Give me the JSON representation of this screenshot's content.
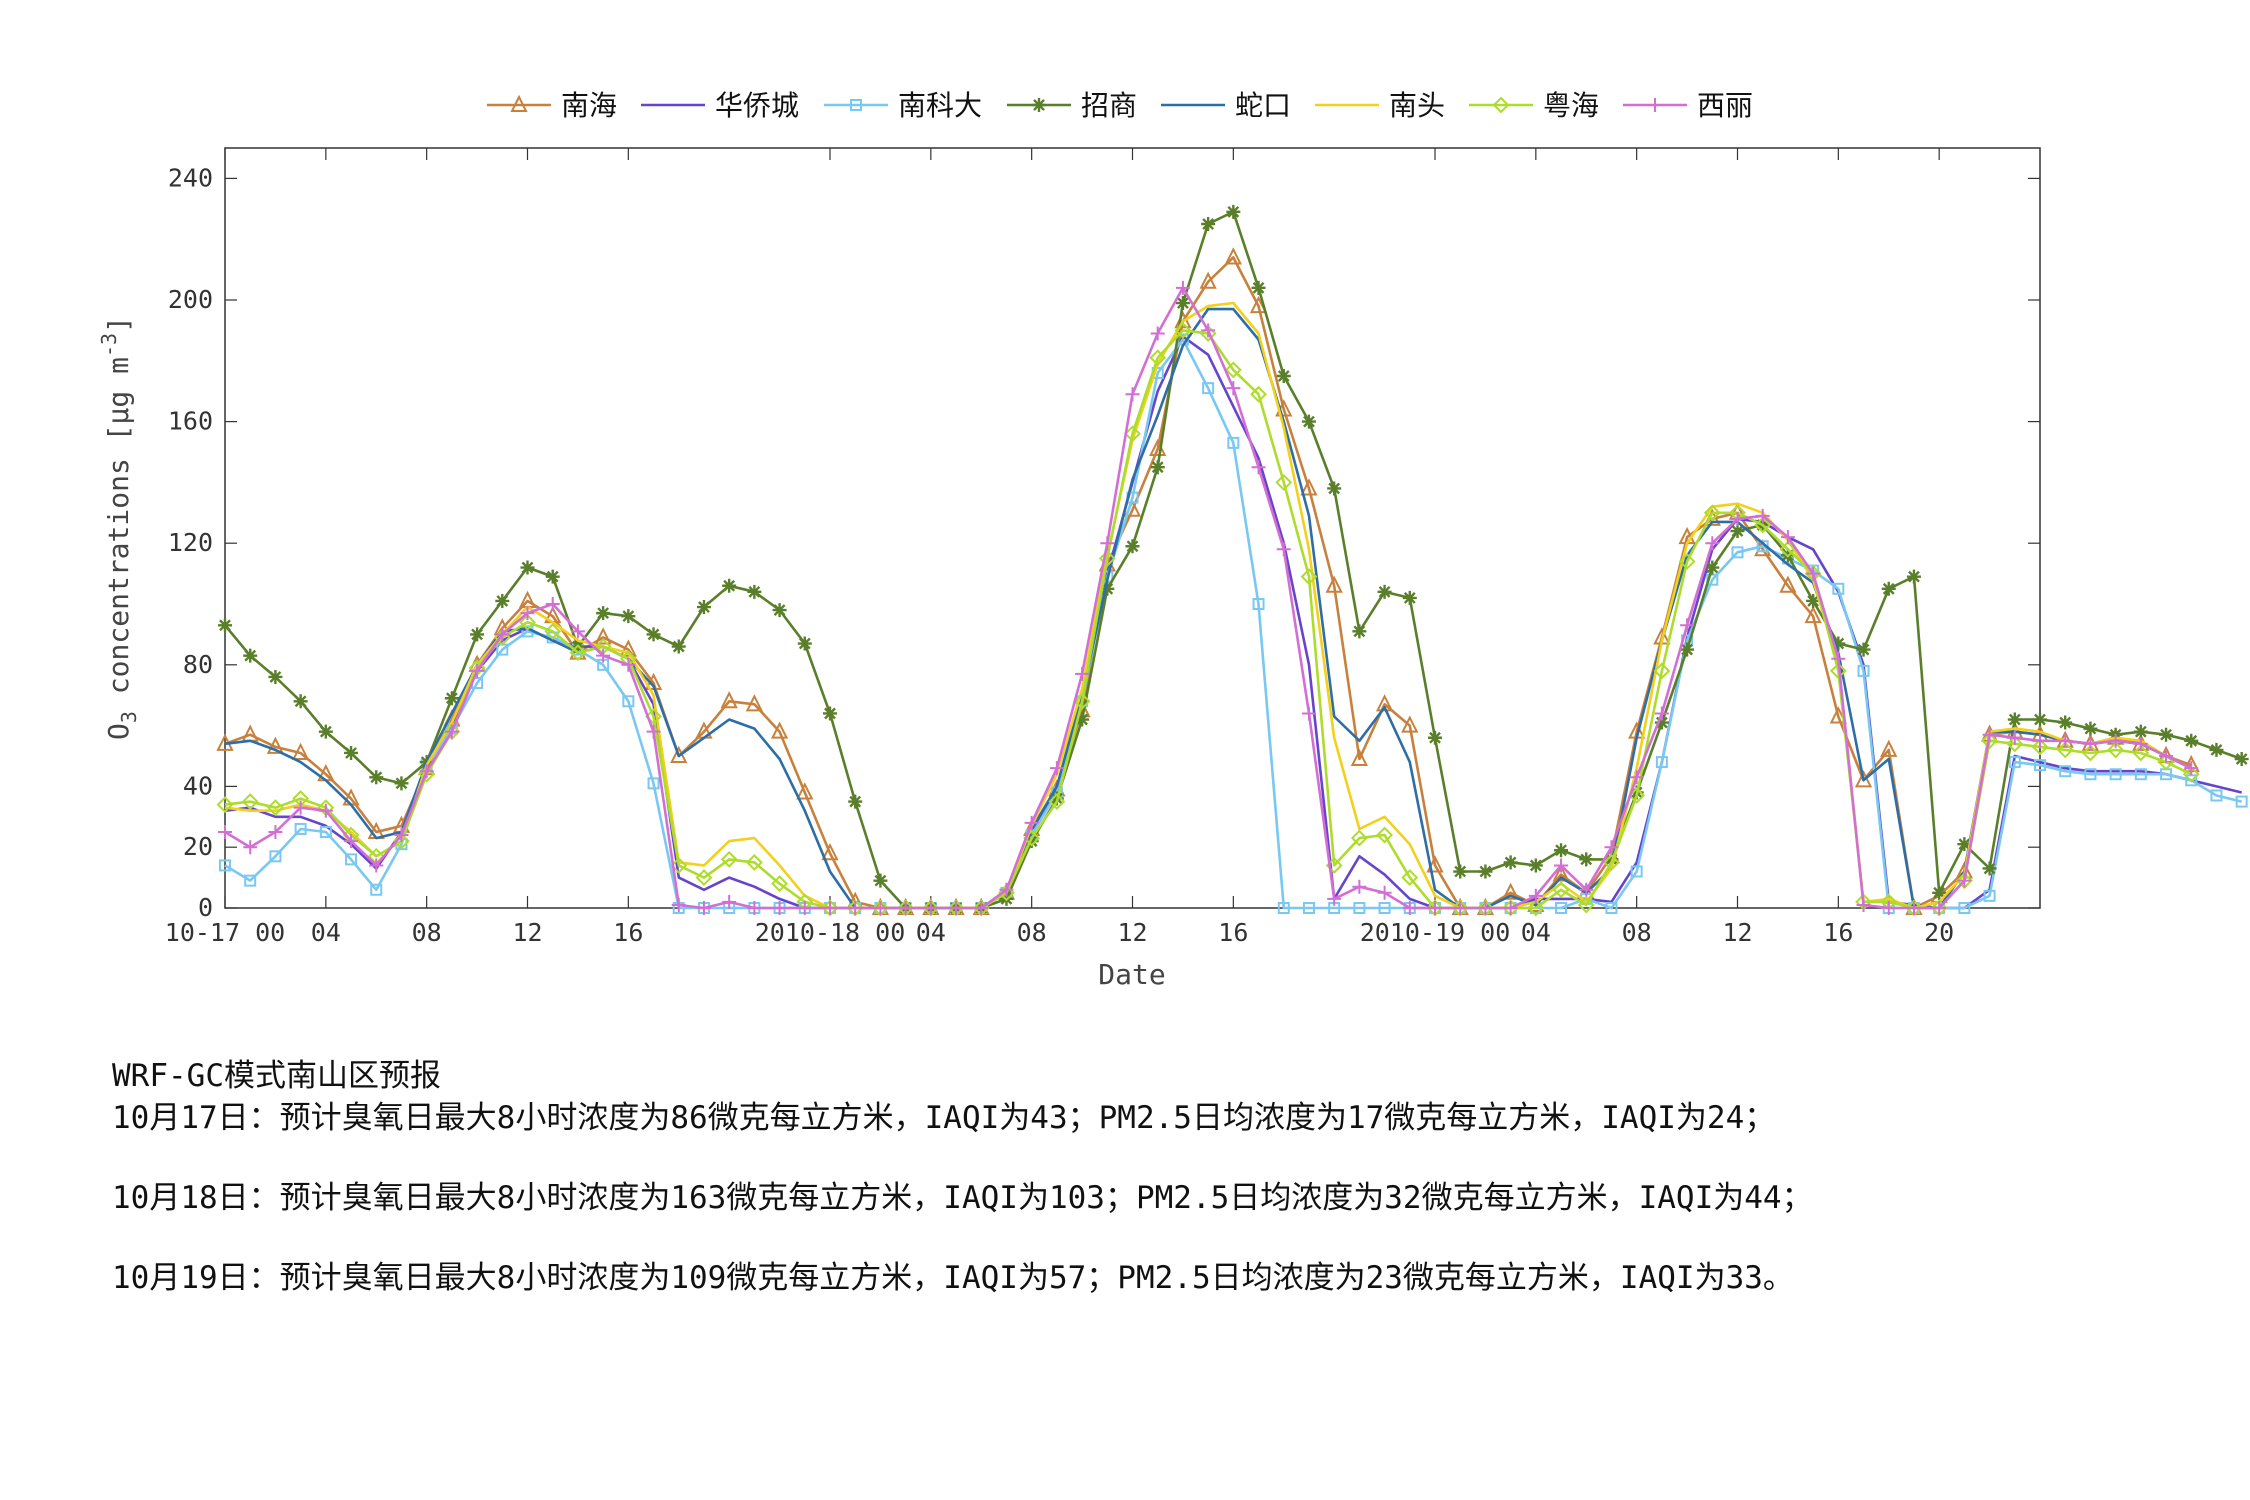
{
  "chart_data": {
    "type": "line",
    "title": "",
    "xlabel": "Date",
    "ylabel": "O3 concentrations [μg m-3]",
    "ylabel_parts": {
      "o": "O",
      "sub": "3",
      "mid": " concentrations [",
      "mu": "μ",
      "unit": "g m",
      "sup": "-3",
      "end": "]"
    },
    "ylim": [
      0,
      250
    ],
    "yticks": [
      0,
      20,
      40,
      80,
      120,
      160,
      200,
      240
    ],
    "x_range": [
      0,
      72
    ],
    "x_ticks": [
      {
        "x": 0,
        "label": "10-17 00"
      },
      {
        "x": 4,
        "label": "04"
      },
      {
        "x": 8,
        "label": "08"
      },
      {
        "x": 12,
        "label": "12"
      },
      {
        "x": 16,
        "label": "16"
      },
      {
        "x": 24,
        "label": "2010-18 00"
      },
      {
        "x": 28,
        "label": "04"
      },
      {
        "x": 32,
        "label": "08"
      },
      {
        "x": 36,
        "label": "12"
      },
      {
        "x": 40,
        "label": "16"
      },
      {
        "x": 48,
        "label": "2010-19 00"
      },
      {
        "x": 52,
        "label": "04"
      },
      {
        "x": 56,
        "label": "08"
      },
      {
        "x": 60,
        "label": "12"
      },
      {
        "x": 64,
        "label": "16"
      },
      {
        "x": 68,
        "label": "20"
      }
    ],
    "legend_position": "top",
    "grid": false,
    "series": [
      {
        "name": "南海",
        "color": "#C8813C",
        "marker": "triangle",
        "values": [
          54,
          57,
          53,
          51,
          44,
          36,
          25,
          27,
          46,
          62,
          80,
          92,
          101,
          96,
          84,
          89,
          85,
          74,
          50,
          58,
          68,
          67,
          58,
          38,
          18,
          2,
          0,
          0,
          0,
          0,
          0,
          5,
          26,
          39,
          65,
          113,
          131,
          151,
          193,
          206,
          214,
          198,
          164,
          138,
          106,
          49,
          67,
          60,
          14,
          0,
          0,
          5,
          1,
          11,
          5,
          17,
          58,
          89,
          122,
          128,
          130,
          118,
          106,
          96,
          63,
          42,
          52,
          0,
          4,
          12,
          57,
          58,
          57,
          55,
          54,
          56,
          54,
          50,
          47
        ]
      },
      {
        "name": "华侨城",
        "color": "#6644CC",
        "marker": "none",
        "values": [
          32,
          33,
          30,
          30,
          27,
          21,
          13,
          25,
          47,
          60,
          78,
          88,
          92,
          88,
          86,
          86,
          82,
          67,
          10,
          6,
          10,
          7,
          3,
          0,
          0,
          0,
          0,
          0,
          0,
          0,
          0,
          5,
          25,
          40,
          68,
          110,
          140,
          170,
          188,
          182,
          165,
          148,
          120,
          80,
          3,
          17,
          11,
          3,
          0,
          0,
          0,
          0,
          3,
          3,
          3,
          2,
          15,
          48,
          89,
          118,
          128,
          127,
          122,
          118,
          104,
          80,
          2,
          1,
          0,
          0,
          6,
          50,
          48,
          46,
          45,
          45,
          45,
          44,
          42,
          40,
          38
        ]
      },
      {
        "name": "南科大",
        "color": "#79C8F2",
        "marker": "square",
        "values": [
          14,
          9,
          17,
          26,
          25,
          16,
          6,
          21,
          47,
          59,
          74,
          85,
          91,
          89,
          85,
          80,
          68,
          41,
          0,
          0,
          0,
          0,
          0,
          0,
          0,
          0,
          0,
          0,
          0,
          0,
          0,
          5,
          24,
          38,
          68,
          109,
          135,
          176,
          187,
          171,
          153,
          100,
          0,
          0,
          0,
          0,
          0,
          0,
          0,
          0,
          0,
          0,
          0,
          0,
          3,
          0,
          12,
          48,
          88,
          108,
          117,
          119,
          115,
          111,
          105,
          78,
          0,
          0,
          0,
          0,
          4,
          48,
          47,
          45,
          44,
          44,
          44,
          44,
          42,
          37,
          35
        ]
      },
      {
        "name": "招商",
        "color": "#5A7F2A",
        "marker": "star",
        "values": [
          93,
          83,
          76,
          68,
          58,
          51,
          43,
          41,
          48,
          69,
          90,
          101,
          112,
          109,
          86,
          97,
          96,
          90,
          86,
          99,
          106,
          104,
          98,
          87,
          64,
          35,
          9,
          0,
          0,
          0,
          0,
          3,
          22,
          36,
          62,
          105,
          119,
          145,
          199,
          225,
          229,
          204,
          175,
          160,
          138,
          91,
          104,
          102,
          56,
          12,
          12,
          15,
          14,
          19,
          16,
          16,
          38,
          61,
          85,
          112,
          124,
          126,
          116,
          101,
          87,
          85,
          105,
          109,
          5,
          21,
          13,
          62,
          62,
          61,
          59,
          57,
          58,
          57,
          55,
          52,
          49
        ]
      },
      {
        "name": "蛇口",
        "color": "#2E6EA6",
        "marker": "none",
        "values": [
          54,
          55,
          52,
          48,
          42,
          34,
          23,
          25,
          48,
          64,
          80,
          91,
          92,
          88,
          84,
          86,
          82,
          73,
          50,
          56,
          62,
          59,
          49,
          32,
          12,
          0,
          0,
          0,
          0,
          0,
          0,
          5,
          26,
          40,
          70,
          108,
          141,
          162,
          185,
          197,
          197,
          187,
          160,
          129,
          63,
          55,
          66,
          48,
          6,
          0,
          0,
          4,
          1,
          10,
          5,
          13,
          56,
          88,
          116,
          127,
          127,
          120,
          113,
          107,
          84,
          42,
          49,
          0,
          0,
          12,
          58,
          58,
          57,
          55,
          54,
          55,
          54,
          50,
          46
        ]
      },
      {
        "name": "南头",
        "color": "#F3D01C",
        "marker": "none",
        "values": [
          33,
          32,
          32,
          34,
          32,
          25,
          17,
          22,
          47,
          61,
          80,
          90,
          99,
          94,
          88,
          86,
          84,
          70,
          15,
          14,
          22,
          23,
          14,
          4,
          0,
          0,
          0,
          0,
          0,
          0,
          0,
          5,
          27,
          44,
          72,
          116,
          154,
          179,
          193,
          198,
          199,
          189,
          158,
          118,
          56,
          26,
          30,
          21,
          4,
          0,
          0,
          0,
          2,
          8,
          2,
          13,
          46,
          88,
          120,
          132,
          133,
          130,
          121,
          108,
          80,
          2,
          3,
          0,
          2,
          11,
          58,
          59,
          58,
          55,
          54,
          56,
          55,
          50,
          46
        ]
      },
      {
        "name": "粤海",
        "color": "#AEDC2C",
        "marker": "diamond",
        "values": [
          34,
          35,
          33,
          36,
          33,
          24,
          17,
          22,
          44,
          58,
          79,
          89,
          94,
          91,
          84,
          86,
          82,
          63,
          14,
          10,
          16,
          15,
          8,
          2,
          0,
          0,
          0,
          0,
          0,
          0,
          0,
          5,
          23,
          35,
          68,
          115,
          156,
          181,
          190,
          189,
          177,
          169,
          140,
          109,
          14,
          23,
          24,
          10,
          0,
          0,
          0,
          0,
          0,
          6,
          1,
          15,
          37,
          78,
          114,
          130,
          130,
          126,
          118,
          110,
          78,
          2,
          2,
          0,
          0,
          9,
          55,
          54,
          53,
          52,
          51,
          52,
          51,
          48,
          44
        ]
      },
      {
        "name": "西丽",
        "color": "#D36FD4",
        "marker": "plus",
        "values": [
          25,
          20,
          25,
          33,
          32,
          22,
          14,
          24,
          45,
          58,
          78,
          90,
          97,
          100,
          91,
          83,
          80,
          58,
          1,
          0,
          2,
          0,
          0,
          0,
          0,
          0,
          0,
          0,
          0,
          0,
          0,
          6,
          28,
          46,
          77,
          120,
          169,
          189,
          204,
          190,
          171,
          145,
          118,
          64,
          3,
          7,
          5,
          0,
          0,
          0,
          0,
          0,
          4,
          14,
          6,
          20,
          43,
          64,
          93,
          120,
          128,
          129,
          122,
          110,
          82,
          1,
          0,
          0,
          0,
          9,
          57,
          56,
          55,
          55,
          54,
          55,
          54,
          50,
          46
        ]
      }
    ]
  },
  "forecast": {
    "heading": "WRF-GC模式南山区预报",
    "lines": [
      "10月17日：预计臭氧日最大8小时浓度为86微克每立方米，IAQI为43；PM2.5日均浓度为17微克每立方米，IAQI为24；",
      "10月18日：预计臭氧日最大8小时浓度为163微克每立方米，IAQI为103；PM2.5日均浓度为32微克每立方米，IAQI为44；",
      "10月19日：预计臭氧日最大8小时浓度为109微克每立方米，IAQI为57；PM2.5日均浓度为23微克每立方米，IAQI为33。"
    ]
  }
}
